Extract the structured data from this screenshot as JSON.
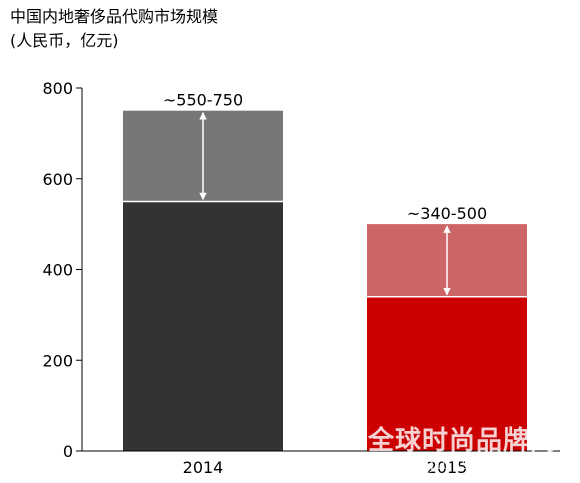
{
  "chart_data": {
    "type": "bar",
    "title": "中国内地奢侈品代购市场规模",
    "subtitle": "(人民币，亿元)",
    "xlabel": "",
    "ylabel": "",
    "ylim": [
      0,
      800
    ],
    "yticks": [
      0,
      200,
      400,
      600,
      800
    ],
    "grid": false,
    "categories": [
      "2014",
      "2015"
    ],
    "series": [
      {
        "values": [
          550,
          340
        ],
        "colors": [
          "#333333",
          "#cc0000"
        ]
      },
      {
        "values": [
          200,
          160
        ],
        "colors": [
          "#777777",
          "#cc6666"
        ]
      }
    ],
    "ranges": [
      {
        "low": 550,
        "high": 750,
        "label": "~550-750"
      },
      {
        "low": 340,
        "high": 500,
        "label": "~340-500"
      }
    ]
  },
  "watermark": {
    "text": "全球时尚品牌网",
    "url": "www.gloss pp.com"
  }
}
